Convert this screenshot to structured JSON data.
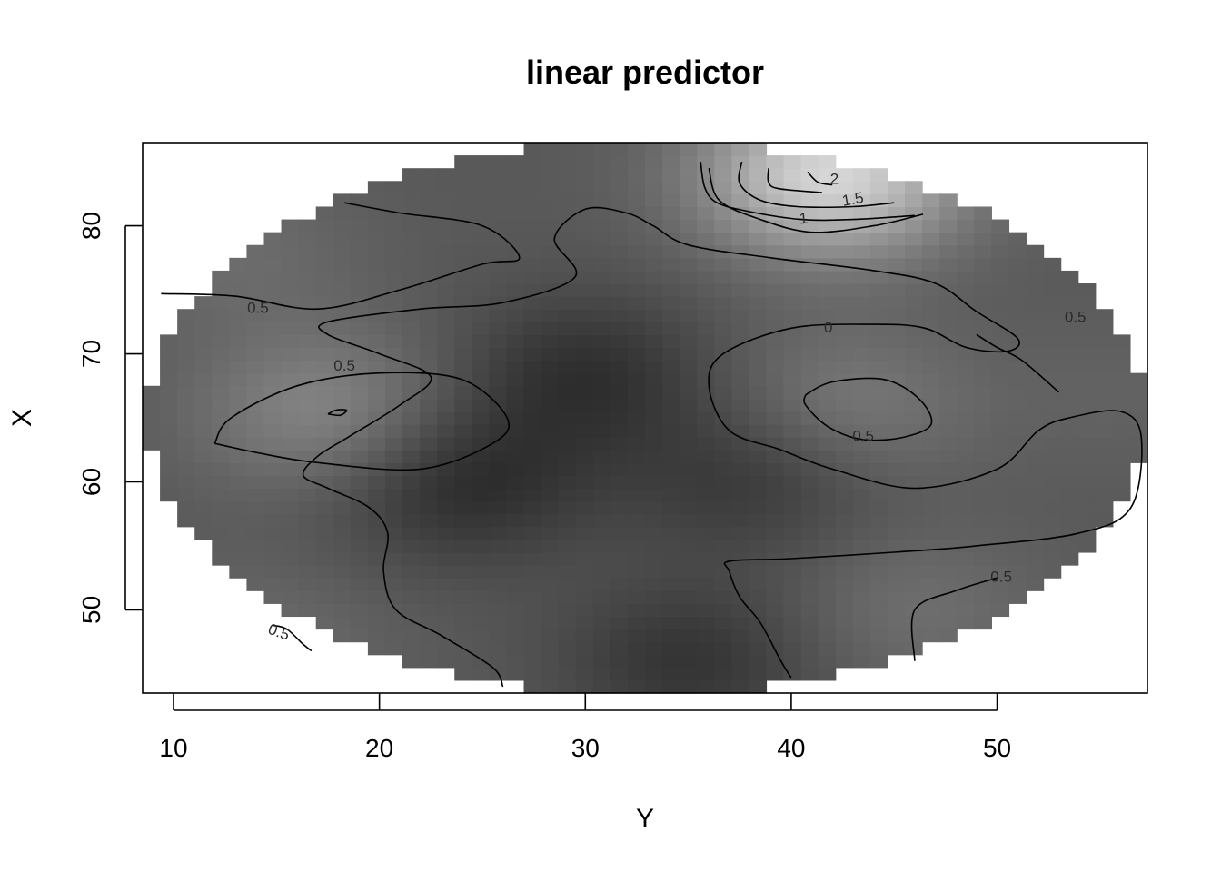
{
  "chart_data": {
    "type": "heatmap",
    "title": "linear predictor",
    "xlabel": "Y",
    "ylabel": "X",
    "xlim": [
      8.5,
      57.3
    ],
    "ylim": [
      43.5,
      86.5
    ],
    "x_ticks": [
      10,
      20,
      30,
      40,
      50
    ],
    "y_ticks": [
      50,
      60,
      70,
      80
    ],
    "x_tick_labels": [
      "10",
      "20",
      "30",
      "40",
      "50"
    ],
    "y_tick_labels": [
      "50",
      "60",
      "70",
      "80"
    ],
    "colormap": "grayscale (dark = low, light = high)",
    "color_low": "#2b2b2b",
    "color_high": "#dcdcdc",
    "value_range": [
      -0.6,
      2.3
    ],
    "grid": false,
    "legend": "none",
    "region_ellipse": {
      "center": [
        33,
        65
      ],
      "semi_axes": [
        24.2,
        21.7
      ]
    },
    "field_peaks": [
      {
        "x": 17.5,
        "y": 65.5,
        "value": 0.9
      },
      {
        "x": 13,
        "y": 78,
        "value": 0.45
      },
      {
        "x": 42.5,
        "y": 66,
        "value": 0.7
      },
      {
        "x": 42,
        "y": 84,
        "value": 2.2
      },
      {
        "x": 46,
        "y": 50,
        "value": 0.5
      },
      {
        "x": 14,
        "y": 47,
        "value": 0.45
      },
      {
        "x": 56,
        "y": 67,
        "value": 0.3
      },
      {
        "x": 30,
        "y": 68.5,
        "value": -0.5
      },
      {
        "x": 24,
        "y": 60,
        "value": -0.6
      },
      {
        "x": 35,
        "y": 46,
        "value": -0.45
      },
      {
        "x": 38,
        "y": 60.5,
        "value": -0.4
      }
    ],
    "contour_lines": [
      {
        "level": "0",
        "points": [
          [
            18.3,
            81.8
          ],
          [
            21,
            81
          ],
          [
            25,
            80
          ],
          [
            26.8,
            77.5
          ],
          [
            25,
            77
          ],
          [
            21,
            75
          ],
          [
            17,
            73.5
          ],
          [
            13,
            74.5
          ],
          [
            9.4,
            74.7
          ]
        ]
      },
      {
        "level": "0",
        "points": [
          [
            46.4,
            80.9
          ],
          [
            44,
            80
          ],
          [
            41,
            79.5
          ],
          [
            38.5,
            80.5
          ],
          [
            36.5,
            82
          ],
          [
            36,
            84.5
          ]
        ]
      },
      {
        "level": "0.5",
        "points": [
          [
            12,
            63
          ],
          [
            12.8,
            65
          ],
          [
            16,
            67.5
          ],
          [
            20,
            68.5
          ],
          [
            24,
            68
          ],
          [
            26.2,
            65
          ],
          [
            25.5,
            63
          ],
          [
            22,
            61
          ],
          [
            17,
            61.5
          ],
          [
            14,
            62.3
          ],
          [
            12,
            63
          ]
        ]
      },
      {
        "level": "1",
        "points": [
          [
            17.5,
            65.3
          ],
          [
            18.1,
            65.2
          ],
          [
            18.4,
            65.6
          ],
          [
            17.9,
            65.6
          ],
          [
            17.5,
            65.3
          ]
        ]
      },
      {
        "level": "0",
        "points": [
          [
            26,
            44
          ],
          [
            25.5,
            45.5
          ],
          [
            23,
            48
          ],
          [
            20.8,
            50
          ],
          [
            20.2,
            53
          ],
          [
            20.4,
            56
          ],
          [
            19.5,
            58
          ],
          [
            17.5,
            59.5
          ],
          [
            16.3,
            60.5
          ],
          [
            17,
            62
          ],
          [
            18.5,
            63.5
          ],
          [
            21,
            66
          ],
          [
            22.5,
            68.2
          ],
          [
            20,
            70
          ],
          [
            17.5,
            71.5
          ],
          [
            17.5,
            72.5
          ],
          [
            22,
            73.5
          ],
          [
            26,
            74
          ],
          [
            29.5,
            76
          ],
          [
            28.5,
            79
          ],
          [
            30,
            81.3
          ],
          [
            32,
            81
          ],
          [
            33.3,
            80
          ],
          [
            35,
            78.5
          ],
          [
            39,
            77.5
          ],
          [
            44,
            76.5
          ],
          [
            47,
            75.5
          ],
          [
            49,
            73.3
          ],
          [
            51,
            71.2
          ],
          [
            50.5,
            70.2
          ],
          [
            48.5,
            70.5
          ],
          [
            46.5,
            72
          ],
          [
            44,
            72.3
          ],
          [
            40,
            72
          ],
          [
            36.7,
            70
          ],
          [
            36,
            67.5
          ],
          [
            37,
            64
          ],
          [
            39.5,
            62.5
          ],
          [
            42,
            61
          ],
          [
            46,
            59.5
          ],
          [
            50,
            61
          ],
          [
            52,
            64
          ],
          [
            53.5,
            65
          ],
          [
            56,
            65.5
          ],
          [
            57,
            63.5
          ],
          [
            56.5,
            58
          ],
          [
            54,
            56
          ],
          [
            49,
            55
          ],
          [
            45,
            54.5
          ],
          [
            40,
            54
          ],
          [
            37,
            53.8
          ],
          [
            37,
            53
          ],
          [
            37.5,
            51
          ],
          [
            38.5,
            49
          ],
          [
            39.5,
            46
          ],
          [
            40,
            44.7
          ]
        ]
      },
      {
        "level": "0.5",
        "points": [
          [
            40.7,
            66.8
          ],
          [
            42,
            67.8
          ],
          [
            44.5,
            68
          ],
          [
            46.2,
            66.5
          ],
          [
            46.8,
            64.5
          ],
          [
            45.5,
            63.5
          ],
          [
            43.5,
            63.3
          ],
          [
            41.8,
            64.3
          ],
          [
            40.7,
            66
          ],
          [
            40.7,
            66.8
          ]
        ]
      },
      {
        "level": "0.5",
        "points": [
          [
            35.6,
            85
          ],
          [
            35.8,
            83
          ],
          [
            36.4,
            81.8
          ],
          [
            38,
            81.1
          ],
          [
            40.5,
            80.5
          ],
          [
            43,
            80.5
          ],
          [
            46,
            80.8
          ]
        ]
      },
      {
        "level": "1",
        "points": [
          [
            37.6,
            85
          ],
          [
            37.5,
            83.3
          ],
          [
            38.5,
            82
          ],
          [
            40.3,
            81.5
          ],
          [
            43,
            81.5
          ],
          [
            45,
            81.8
          ]
        ]
      },
      {
        "level": "1.5",
        "points": [
          [
            38.9,
            84.5
          ],
          [
            38.9,
            83.4
          ],
          [
            39.4,
            82.9
          ],
          [
            41.5,
            82.6
          ]
        ]
      },
      {
        "level": "2",
        "points": [
          [
            40.8,
            84.2
          ],
          [
            41.3,
            83.4
          ],
          [
            42,
            83.2
          ]
        ]
      },
      {
        "level": "0.5",
        "points": [
          [
            49,
            71.5
          ],
          [
            50,
            70.5
          ],
          [
            51.2,
            69.5
          ],
          [
            53,
            67
          ]
        ]
      },
      {
        "level": "0.5",
        "points": [
          [
            50,
            52.5
          ],
          [
            48,
            51.5
          ],
          [
            46,
            50
          ],
          [
            46,
            46
          ]
        ]
      },
      {
        "level": "0.5",
        "points": [
          [
            14.8,
            48.8
          ],
          [
            15.5,
            48.5
          ],
          [
            16.3,
            47.3
          ],
          [
            16.7,
            46.8
          ]
        ]
      }
    ],
    "contour_labels": [
      {
        "text": "0.5",
        "x": 14.1,
        "y": 73.5,
        "angle": 0
      },
      {
        "text": "0.5",
        "x": 18.3,
        "y": 69,
        "angle": 0
      },
      {
        "text": "0.5",
        "x": 53.8,
        "y": 72.8,
        "angle": 0
      },
      {
        "text": "0",
        "x": 41.8,
        "y": 72,
        "angle": 0
      },
      {
        "text": "0.5",
        "x": 43.5,
        "y": 63.5,
        "angle": 0
      },
      {
        "text": "0.5",
        "x": 50.2,
        "y": 52.5,
        "angle": 0
      },
      {
        "text": "0.5",
        "x": 15.1,
        "y": 48.2,
        "angle": 20
      },
      {
        "text": "1",
        "x": 40.6,
        "y": 80.5,
        "angle": -5
      },
      {
        "text": "1.5",
        "x": 43,
        "y": 82,
        "angle": -10
      },
      {
        "text": "2",
        "x": 42.1,
        "y": 83.6,
        "angle": 0
      }
    ]
  }
}
